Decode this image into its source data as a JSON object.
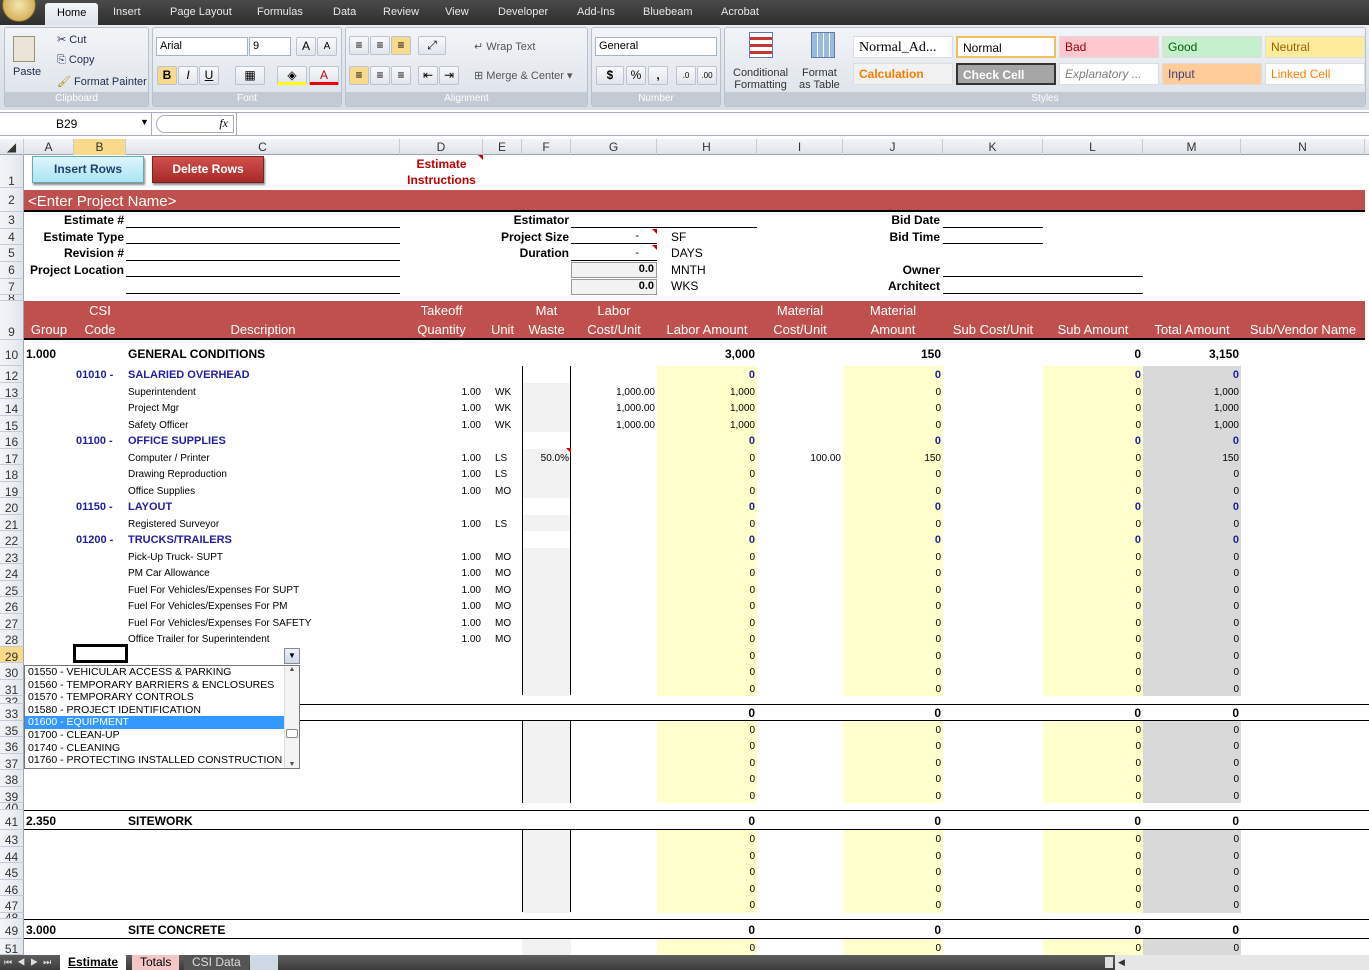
{
  "ribbon": {
    "tabs": [
      "Home",
      "Insert",
      "Page Layout",
      "Formulas",
      "Data",
      "Review",
      "View",
      "Developer",
      "Add-Ins",
      "Bluebeam",
      "Acrobat"
    ],
    "clipboard": {
      "paste": "Paste",
      "cut": "Cut",
      "copy": "Copy",
      "format_painter": "Format Painter",
      "label": "Clipboard"
    },
    "font": {
      "name": "Arial",
      "size": "9",
      "label": "Font",
      "bold": "B",
      "italic": "I",
      "underline": "U"
    },
    "alignment": {
      "wrap": "Wrap Text",
      "merge": "Merge & Center",
      "label": "Alignment"
    },
    "number": {
      "format": "General",
      "currency": "$",
      "percent": "%",
      "comma": ",",
      "label": "Number"
    },
    "styles": {
      "cond1": "Conditional",
      "cond2": "Formatting",
      "fmt1": "Format",
      "fmt2": "as Table",
      "label": "Styles",
      "items": [
        {
          "t": "Normal_Ad...",
          "bg": "#ffffff",
          "fg": "#000000"
        },
        {
          "t": "Normal",
          "bg": "#ffffff",
          "fg": "#000000"
        },
        {
          "t": "Bad",
          "bg": "#ffc7ce",
          "fg": "#9c0006"
        },
        {
          "t": "Good",
          "bg": "#c6efce",
          "fg": "#006100"
        },
        {
          "t": "Neutral",
          "bg": "#ffeb9c",
          "fg": "#9c6500"
        },
        {
          "t": "Calculation",
          "bg": "#f2f2f2",
          "fg": "#fa7d00"
        },
        {
          "t": "Check Cell",
          "bg": "#a5a5a5",
          "fg": "#ffffff"
        },
        {
          "t": "Explanatory ...",
          "bg": "#ffffff",
          "fg": "#7f7f7f"
        },
        {
          "t": "Input",
          "bg": "#ffcc99",
          "fg": "#3f3f76"
        },
        {
          "t": "Linked Cell",
          "bg": "#ffffff",
          "fg": "#fa7d00"
        }
      ]
    }
  },
  "formula_bar": {
    "name_box": "B29",
    "fx": "fx",
    "value": ""
  },
  "columns": [
    "A",
    "B",
    "C",
    "D",
    "E",
    "F",
    "G",
    "H",
    "I",
    "J",
    "K",
    "L",
    "M",
    "N"
  ],
  "selected_cell": "B29",
  "sheet": {
    "insert_rows": "Insert Rows",
    "delete_rows": "Delete Rows",
    "instructions1": "Estimate",
    "instructions2": "Instructions",
    "project_name": "<Enter Project Name>",
    "estimate_no": "Estimate #",
    "estimate_type": "Estimate Type",
    "revision": "Revision #",
    "project_location": "Project Location",
    "estimator": "Estimator",
    "project_size": "Project Size",
    "duration": "Duration",
    "size_val": "-",
    "dur_val": "-",
    "sf": "SF",
    "days": "DAYS",
    "mnth_val": "0.0",
    "mnth": "MNTH",
    "wks_val": "0.0",
    "wks": "WKS",
    "bid_date": "Bid Date",
    "bid_time": "Bid Time",
    "owner": "Owner",
    "architect": "Architect",
    "headers": {
      "A": [
        "",
        "Group"
      ],
      "B": [
        "CSI",
        "Code"
      ],
      "C": [
        "",
        "Description"
      ],
      "D": [
        "Takeoff",
        "Quantity"
      ],
      "E": [
        "",
        "Unit"
      ],
      "F": [
        "Mat",
        "Waste"
      ],
      "G": [
        "Labor",
        "Cost/Unit"
      ],
      "H": [
        "",
        "Labor Amount"
      ],
      "I": [
        "Material",
        "Cost/Unit"
      ],
      "J": [
        "Material",
        "Amount"
      ],
      "K": [
        "",
        "Sub Cost/Unit"
      ],
      "L": [
        "",
        "Sub Amount"
      ],
      "M": [
        "",
        "Total Amount"
      ],
      "N": [
        "",
        "Sub/Vendor Name"
      ]
    }
  },
  "rows": [
    {
      "n": "10",
      "type": "group",
      "A": "1.000",
      "C": "GENERAL CONDITIONS",
      "H": "3,000",
      "J": "150",
      "L": "0",
      "M": "3,150"
    },
    {
      "n": "12",
      "type": "section",
      "B": "01010  -",
      "C": "SALARIED OVERHEAD",
      "H": "0",
      "J": "0",
      "L": "0",
      "M": "0"
    },
    {
      "n": "13",
      "type": "item",
      "C": "Superintendent",
      "D": "1.00",
      "E": "WK",
      "G": "1,000.00",
      "H": "1,000",
      "J": "0",
      "L": "0",
      "M": "1,000"
    },
    {
      "n": "14",
      "type": "item",
      "C": "Project Mgr",
      "D": "1.00",
      "E": "WK",
      "G": "1,000.00",
      "H": "1,000",
      "J": "0",
      "L": "0",
      "M": "1,000"
    },
    {
      "n": "15",
      "type": "item",
      "C": "Safety Officer",
      "D": "1.00",
      "E": "WK",
      "G": "1,000.00",
      "H": "1,000",
      "J": "0",
      "L": "0",
      "M": "1,000"
    },
    {
      "n": "16",
      "type": "section",
      "B": "01100  -",
      "C": "OFFICE SUPPLIES",
      "H": "0",
      "J": "0",
      "L": "0",
      "M": "0"
    },
    {
      "n": "17",
      "type": "item",
      "C": "Computer / Printer",
      "D": "1.00",
      "E": "LS",
      "F": "50.0%",
      "H": "0",
      "I": "100.00",
      "J": "150",
      "L": "0",
      "M": "150"
    },
    {
      "n": "18",
      "type": "item",
      "C": "Drawing Reproduction",
      "D": "1.00",
      "E": "LS",
      "H": "0",
      "J": "0",
      "L": "0",
      "M": "0"
    },
    {
      "n": "19",
      "type": "item",
      "C": "Office Supplies",
      "D": "1.00",
      "E": "MO",
      "H": "0",
      "J": "0",
      "L": "0",
      "M": "0"
    },
    {
      "n": "20",
      "type": "section",
      "B": "01150  -",
      "C": "LAYOUT",
      "H": "0",
      "J": "0",
      "L": "0",
      "M": "0"
    },
    {
      "n": "21",
      "type": "item",
      "C": "Registered Surveyor",
      "D": "1.00",
      "E": "LS",
      "H": "0",
      "J": "0",
      "L": "0",
      "M": "0"
    },
    {
      "n": "22",
      "type": "section",
      "B": "01200  -",
      "C": "TRUCKS/TRAILERS",
      "H": "0",
      "J": "0",
      "L": "0",
      "M": "0"
    },
    {
      "n": "23",
      "type": "item",
      "C": "Pick-Up Truck- SUPT",
      "D": "1.00",
      "E": "MO",
      "H": "0",
      "J": "0",
      "L": "0",
      "M": "0"
    },
    {
      "n": "24",
      "type": "item",
      "C": "PM Car Allowance",
      "D": "1.00",
      "E": "MO",
      "H": "0",
      "J": "0",
      "L": "0",
      "M": "0"
    },
    {
      "n": "25",
      "type": "item",
      "C": "Fuel For Vehicles/Expenses For SUPT",
      "D": "1.00",
      "E": "MO",
      "H": "0",
      "J": "0",
      "L": "0",
      "M": "0"
    },
    {
      "n": "26",
      "type": "item",
      "C": "Fuel For Vehicles/Expenses For PM",
      "D": "1.00",
      "E": "MO",
      "H": "0",
      "J": "0",
      "L": "0",
      "M": "0"
    },
    {
      "n": "27",
      "type": "item",
      "C": "Fuel For Vehicles/Expenses For SAFETY",
      "D": "1.00",
      "E": "MO",
      "H": "0",
      "J": "0",
      "L": "0",
      "M": "0"
    },
    {
      "n": "28",
      "type": "item",
      "C": "Office Trailer for Superintendent",
      "D": "1.00",
      "E": "MO",
      "H": "0",
      "J": "0",
      "L": "0",
      "M": "0"
    },
    {
      "n": "29",
      "type": "item",
      "H": "0",
      "J": "0",
      "L": "0",
      "M": "0"
    },
    {
      "n": "30",
      "type": "item",
      "H": "0",
      "J": "0",
      "L": "0",
      "M": "0"
    },
    {
      "n": "31",
      "type": "item",
      "H": "0",
      "J": "0",
      "L": "0",
      "M": "0"
    },
    {
      "n": "32",
      "type": "spacer"
    },
    {
      "n": "33",
      "type": "group",
      "H": "0",
      "J": "0",
      "L": "0",
      "M": "0"
    },
    {
      "n": "35",
      "type": "item",
      "H": "0",
      "J": "0",
      "L": "0",
      "M": "0"
    },
    {
      "n": "36",
      "type": "item",
      "H": "0",
      "J": "0",
      "L": "0",
      "M": "0"
    },
    {
      "n": "37",
      "type": "item",
      "H": "0",
      "J": "0",
      "L": "0",
      "M": "0"
    },
    {
      "n": "38",
      "type": "item",
      "H": "0",
      "J": "0",
      "L": "0",
      "M": "0"
    },
    {
      "n": "39",
      "type": "item",
      "H": "0",
      "J": "0",
      "L": "0",
      "M": "0"
    },
    {
      "n": "40",
      "type": "spacer"
    },
    {
      "n": "41",
      "type": "group",
      "A": "2.350",
      "C": "SITEWORK",
      "H": "0",
      "J": "0",
      "L": "0",
      "M": "0"
    },
    {
      "n": "43",
      "type": "item",
      "H": "0",
      "J": "0",
      "L": "0",
      "M": "0"
    },
    {
      "n": "44",
      "type": "item",
      "H": "0",
      "J": "0",
      "L": "0",
      "M": "0"
    },
    {
      "n": "45",
      "type": "item",
      "H": "0",
      "J": "0",
      "L": "0",
      "M": "0"
    },
    {
      "n": "46",
      "type": "item",
      "H": "0",
      "J": "0",
      "L": "0",
      "M": "0"
    },
    {
      "n": "47",
      "type": "item",
      "H": "0",
      "J": "0",
      "L": "0",
      "M": "0"
    },
    {
      "n": "48",
      "type": "spacer"
    },
    {
      "n": "49",
      "type": "group",
      "A": "3.000",
      "C": "SITE CONCRETE",
      "H": "0",
      "J": "0",
      "L": "0",
      "M": "0"
    },
    {
      "n": "51",
      "type": "item",
      "H": "0",
      "J": "0",
      "L": "0",
      "M": "0"
    }
  ],
  "dropdown": {
    "items": [
      "01550  -  VEHICULAR ACCESS & PARKING",
      "01560  -  TEMPORARY BARRIERS & ENCLOSURES",
      "01570  -  TEMPORARY CONTROLS",
      "01580  -  PROJECT IDENTIFICATION",
      "01600  -  EQUIPMENT",
      "01700  -  CLEAN-UP",
      "01740  -  CLEANING",
      "01760  -  PROTECTING INSTALLED CONSTRUCTION"
    ],
    "selected": 4
  },
  "sheet_tabs": [
    {
      "label": "Estimate",
      "active": true
    },
    {
      "label": "Totals",
      "active": false
    },
    {
      "label": "CSI Data",
      "active": false
    }
  ],
  "colors": {
    "header_red": "#c0504d",
    "fill_yellow": "#ffffcc",
    "fill_gray": "#d9d9d9",
    "section_blue": "#1f1fa0"
  }
}
